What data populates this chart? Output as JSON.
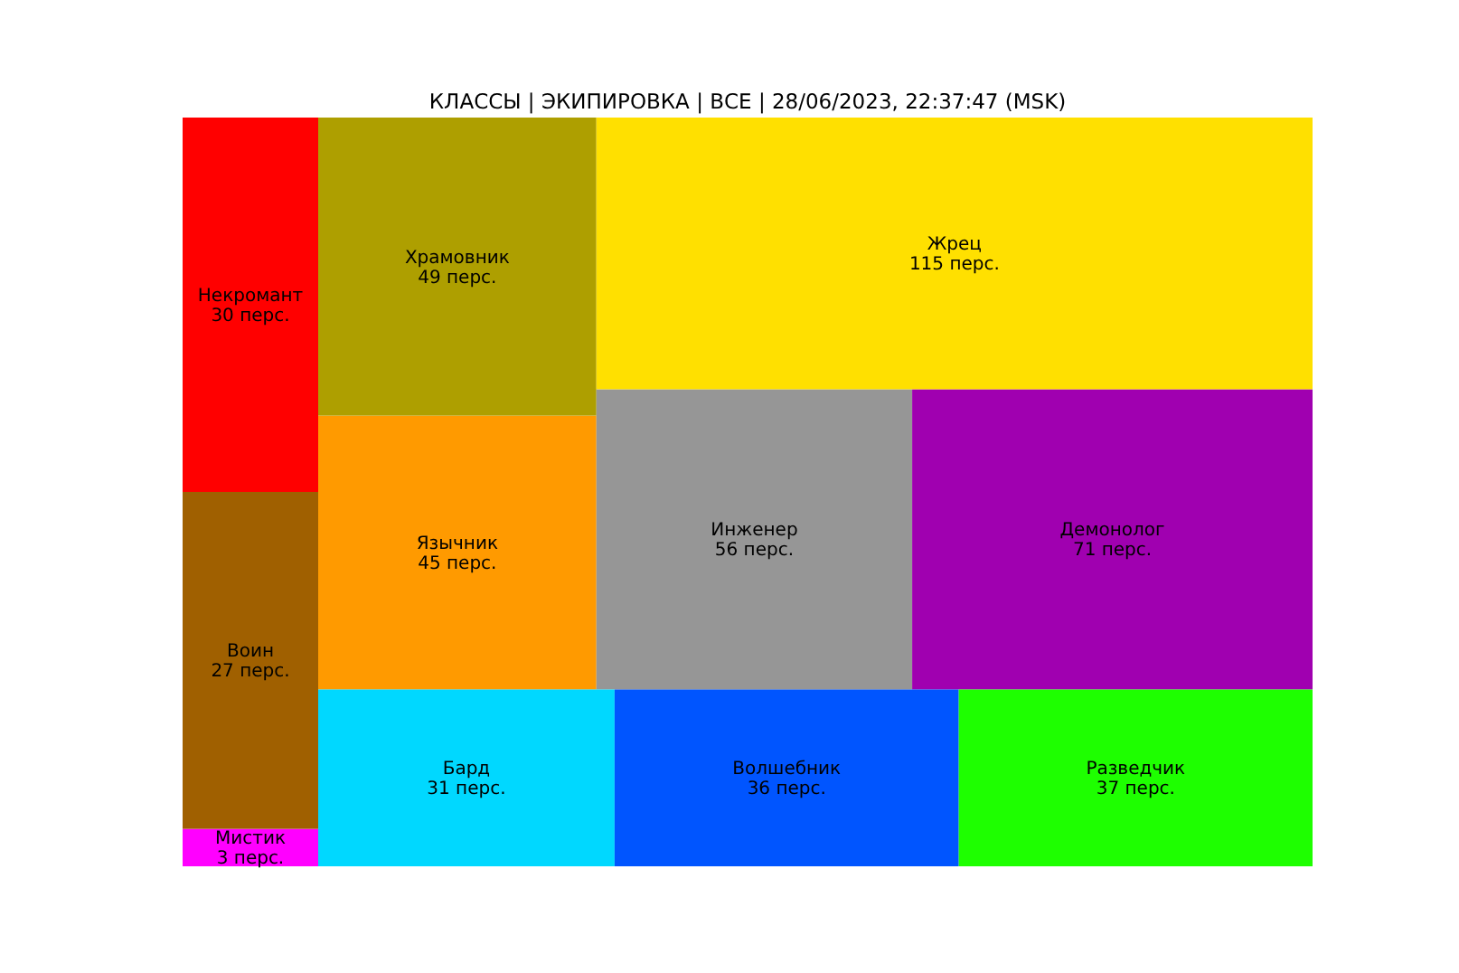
{
  "chart_data": {
    "type": "other",
    "title": "КЛАССЫ | ЭКИПИРОВКА | ВСЕ | 28/06/2023, 22:37:47 (MSK)",
    "categories": [
      "Мистик",
      "Воин",
      "Некромант",
      "Бард",
      "Волшебник",
      "Разведчик",
      "Язычник",
      "Храмовник",
      "Инженер",
      "Демонолог",
      "Жрец"
    ],
    "values": [
      3,
      27,
      30,
      31,
      36,
      37,
      45,
      49,
      56,
      71,
      115
    ],
    "value_labels": [
      "3 перс.",
      "27 перс.",
      "30 перс.",
      "31 перс.",
      "36 перс.",
      "37 перс.",
      "45 перс.",
      "49 перс.",
      "56 перс.",
      "71 перс.",
      "115 перс."
    ],
    "colors": [
      "#ff00ff",
      "#a06000",
      "#ff0000",
      "#00d8ff",
      "#0055ff",
      "#1eff00",
      "#ff9a00",
      "#ae9f00",
      "#969696",
      "#a000b0",
      "#ffe000"
    ]
  }
}
